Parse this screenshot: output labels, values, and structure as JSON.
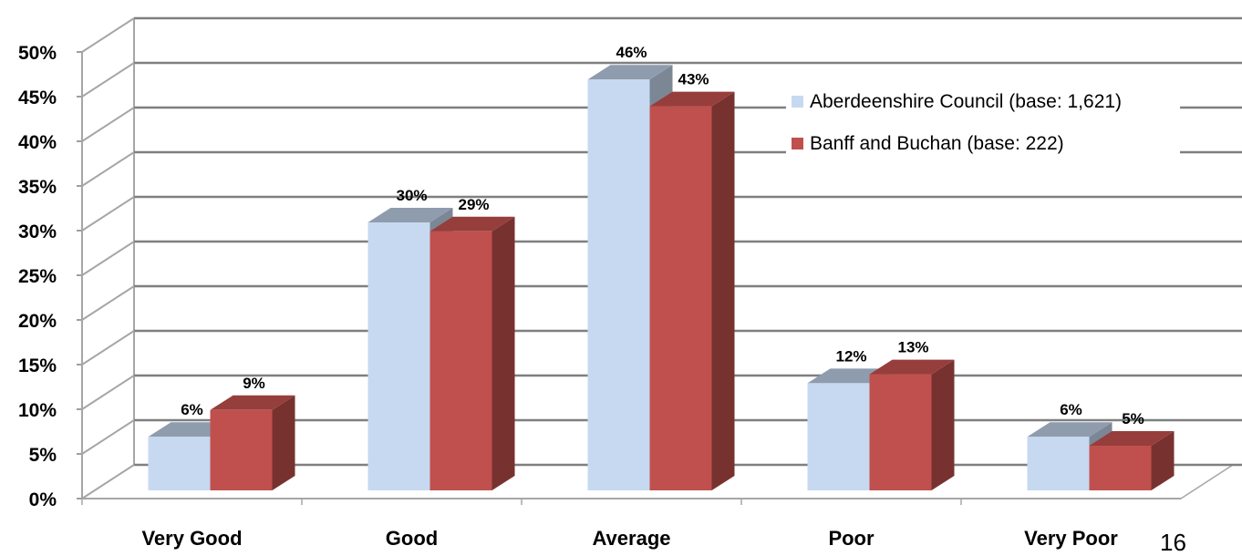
{
  "chart_data": {
    "type": "bar",
    "title": "",
    "xlabel": "",
    "ylabel": "",
    "categories": [
      "Very Good",
      "Good",
      "Average",
      "Poor",
      "Very Poor"
    ],
    "series": [
      {
        "name": "Aberdeenshire Council (base: 1,621)",
        "values": [
          6,
          30,
          46,
          12,
          6
        ],
        "labels": [
          "6%",
          "30%",
          "46%",
          "12%",
          "6%"
        ],
        "color": "#c6d9f1"
      },
      {
        "name": "Banff and Buchan (base: 222)",
        "values": [
          9,
          29,
          43,
          13,
          5
        ],
        "labels": [
          "9%",
          "29%",
          "43%",
          "13%",
          "5%"
        ],
        "color": "#c0504d"
      }
    ],
    "ylim": [
      0,
      50
    ],
    "yticks": [
      "0%",
      "5%",
      "10%",
      "15%",
      "20%",
      "25%",
      "30%",
      "35%",
      "40%",
      "45%",
      "50%"
    ],
    "grid": true,
    "three_d": true,
    "legend_position": "top-right"
  },
  "slide": {
    "number": "16"
  }
}
